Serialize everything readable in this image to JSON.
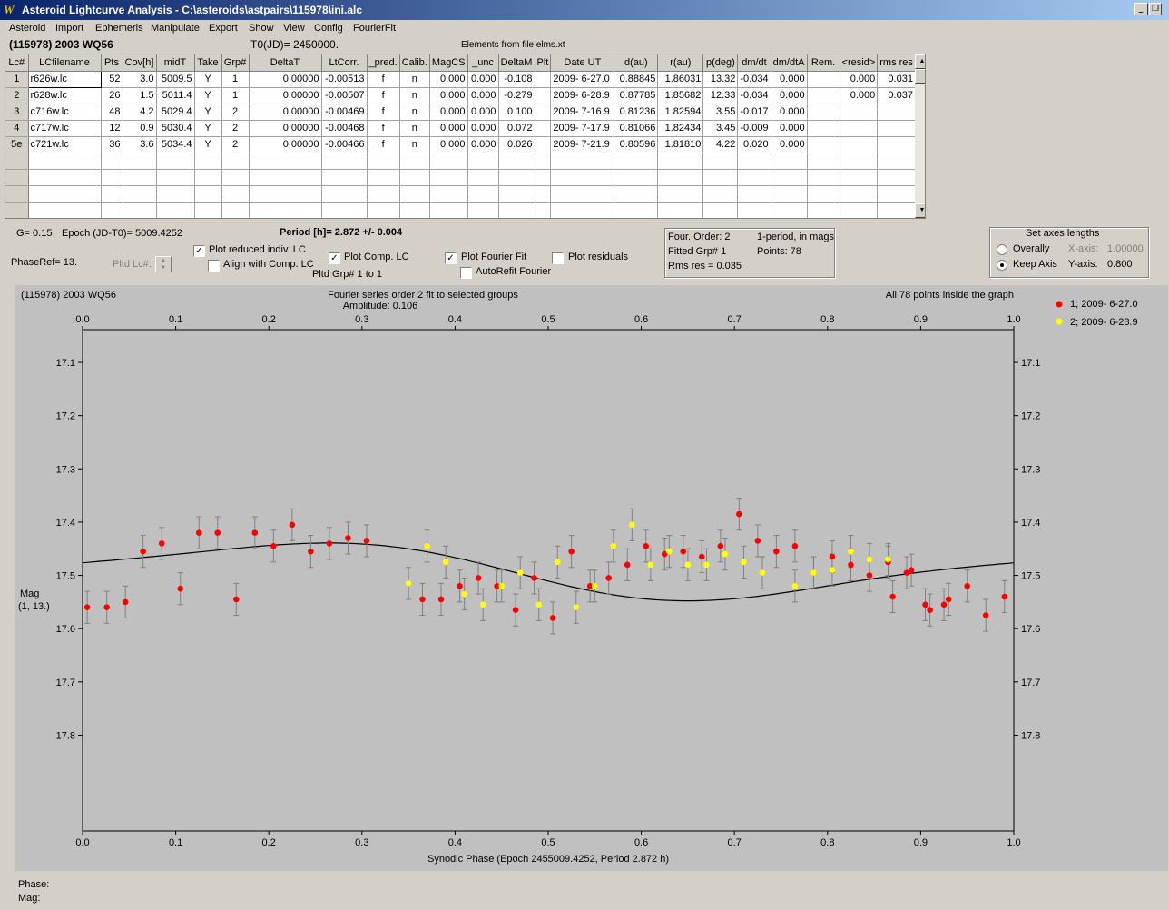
{
  "window": {
    "title": "Asteroid Lightcurve Analysis - C:\\asteroids\\astpairs\\115978\\ini.alc",
    "min": "_",
    "restore": "❐",
    "close": "×"
  },
  "menu": [
    "Asteroid",
    "Import",
    "Ephemeris",
    "Manipulate",
    "Export",
    "Show",
    "View",
    "Config",
    "FourierFit"
  ],
  "asteroid_name": "(115978) 2003 WQ56",
  "t0": "T0(JD)= 2450000.",
  "elements": "Elements from file elms.xt",
  "grid": {
    "headers": [
      "Lc#",
      "LCfilename",
      "Pts",
      "Cov[h]",
      "midT",
      "Take",
      "Grp#",
      "DeltaT",
      "LtCorr.",
      "_pred.",
      "Calib.",
      "MagCS",
      "_unc",
      "DeltaM",
      "Plt",
      "Date UT",
      "d(au)",
      "r(au)",
      "p(deg)",
      "dm/dt",
      "dm/dtA",
      "Rem.",
      "<resid>",
      "rms res"
    ],
    "rows": [
      [
        "1",
        "r626w.lc",
        "52",
        "3.0",
        "5009.5",
        "Y",
        "1",
        "0.00000",
        "-0.00513",
        "f",
        "n",
        "0.000",
        "0.000",
        "-0.108",
        "",
        "2009- 6-27.0",
        "0.88845",
        "1.86031",
        "13.32",
        "-0.034",
        "0.000",
        "",
        "0.000",
        "0.031"
      ],
      [
        "2",
        "r628w.lc",
        "26",
        "1.5",
        "5011.4",
        "Y",
        "1",
        "0.00000",
        "-0.00507",
        "f",
        "n",
        "0.000",
        "0.000",
        "-0.279",
        "",
        "2009- 6-28.9",
        "0.87785",
        "1.85682",
        "12.33",
        "-0.034",
        "0.000",
        "",
        "0.000",
        "0.037"
      ],
      [
        "3",
        "c716w.lc",
        "48",
        "4.2",
        "5029.4",
        "Y",
        "2",
        "0.00000",
        "-0.00469",
        "f",
        "n",
        "0.000",
        "0.000",
        "0.100",
        "",
        "2009- 7-16.9",
        "0.81236",
        "1.82594",
        "3.55",
        "-0.017",
        "0.000",
        "",
        "",
        ""
      ],
      [
        "4",
        "c717w.lc",
        "12",
        "0.9",
        "5030.4",
        "Y",
        "2",
        "0.00000",
        "-0.00468",
        "f",
        "n",
        "0.000",
        "0.000",
        "0.072",
        "",
        "2009- 7-17.9",
        "0.81066",
        "1.82434",
        "3.45",
        "-0.009",
        "0.000",
        "",
        "",
        ""
      ],
      [
        "5e",
        "c721w.lc",
        "36",
        "3.6",
        "5034.4",
        "Y",
        "2",
        "0.00000",
        "-0.00466",
        "f",
        "n",
        "0.000",
        "0.000",
        "0.026",
        "",
        "2009- 7-21.9",
        "0.80596",
        "1.81810",
        "4.22",
        "0.020",
        "0.000",
        "",
        "",
        ""
      ]
    ],
    "empty_rows": 4
  },
  "controls": {
    "g": "G= 0.15",
    "epoch": "Epoch (JD-T0)= 5009.4252",
    "period": "Period [h]= 2.872 +/- 0.004",
    "phaseref": "PhaseRef= 13.",
    "pltd_lc": "Pltd Lc#:",
    "plot_reduced": "Plot reduced indiv. LC",
    "align_comp": "Align with Comp. LC",
    "plot_comp": "Plot Comp. LC",
    "pltd_grp": "Pltd Grp#  1   to   1",
    "plot_fourier": "Plot Fourier Fit",
    "autorefit": "AutoRefit Fourier",
    "plot_residuals": "Plot residuals",
    "four_order": "Four. Order:  2",
    "one_period": "1-period, in mags",
    "fitted_grp": "Fitted Grp# 1",
    "points": "Points: 78",
    "rms_res": "Rms res      = 0.035",
    "axes_title": "Set axes lengths",
    "overally": "Overally",
    "keep_axis": "Keep Axis",
    "xaxis_label": "X-axis:",
    "xaxis_value": "1.00000",
    "yaxis_label": "Y-axis:",
    "yaxis_value": "0.800"
  },
  "plot": {
    "name": "(115978) 2003 WQ56",
    "fit_text": "Fourier series order 2 fit to selected groups",
    "amplitude": "Amplitude: 0.106",
    "inside": "All 78 points inside the graph",
    "legend": [
      "1; 2009- 6-27.0",
      "2; 2009- 6-28.9"
    ],
    "ylabel1": "Mag",
    "ylabel2": "(1, 13.)",
    "xlabel": "Synodic Phase (Epoch 2455009.4252, Period 2.872 h)",
    "phase_label": "Phase:",
    "mag_label": "Mag:"
  },
  "colors": {
    "series1": "#ff0000",
    "series2": "#ffff00",
    "curve": "#000000",
    "plot_bg": "#c0c0c0",
    "errbar": "#808080"
  },
  "chart_data": {
    "type": "scatter",
    "title": "Fourier series order 2 fit to selected groups",
    "xlabel": "Synodic Phase (Epoch 2455009.4252, Period 2.872 h)",
    "ylabel": "Mag",
    "xlim": [
      0.0,
      1.0
    ],
    "ylim": [
      17.1,
      17.9
    ],
    "y_inverted": true,
    "xticks": [
      "0.0",
      "0.1",
      "0.2",
      "0.3",
      "0.4",
      "0.5",
      "0.6",
      "0.7",
      "0.8",
      "0.9",
      "1.0"
    ],
    "yticks": [
      "17.1",
      "17.2",
      "17.3",
      "17.4",
      "17.5",
      "17.6",
      "17.7",
      "17.8"
    ],
    "err": 0.03,
    "series": [
      {
        "name": "1; 2009- 6-27.0",
        "color": "#ff0000",
        "points": [
          [
            0.005,
            17.56
          ],
          [
            0.026,
            17.56
          ],
          [
            0.046,
            17.55
          ],
          [
            0.065,
            17.455
          ],
          [
            0.085,
            17.44
          ],
          [
            0.105,
            17.525
          ],
          [
            0.125,
            17.42
          ],
          [
            0.145,
            17.42
          ],
          [
            0.165,
            17.545
          ],
          [
            0.185,
            17.42
          ],
          [
            0.205,
            17.445
          ],
          [
            0.225,
            17.405
          ],
          [
            0.245,
            17.455
          ],
          [
            0.265,
            17.44
          ],
          [
            0.285,
            17.43
          ],
          [
            0.305,
            17.435
          ],
          [
            0.365,
            17.545
          ],
          [
            0.385,
            17.545
          ],
          [
            0.405,
            17.52
          ],
          [
            0.425,
            17.505
          ],
          [
            0.445,
            17.52
          ],
          [
            0.465,
            17.565
          ],
          [
            0.485,
            17.505
          ],
          [
            0.505,
            17.58
          ],
          [
            0.525,
            17.455
          ],
          [
            0.545,
            17.52
          ],
          [
            0.565,
            17.505
          ],
          [
            0.585,
            17.48
          ],
          [
            0.605,
            17.445
          ],
          [
            0.625,
            17.46
          ],
          [
            0.645,
            17.455
          ],
          [
            0.665,
            17.465
          ],
          [
            0.685,
            17.445
          ],
          [
            0.705,
            17.385
          ],
          [
            0.725,
            17.435
          ],
          [
            0.745,
            17.455
          ],
          [
            0.765,
            17.445
          ],
          [
            0.785,
            17.495
          ],
          [
            0.805,
            17.465
          ],
          [
            0.825,
            17.48
          ],
          [
            0.845,
            17.5
          ],
          [
            0.865,
            17.475
          ],
          [
            0.87,
            17.54
          ],
          [
            0.885,
            17.495
          ],
          [
            0.89,
            17.49
          ],
          [
            0.905,
            17.555
          ],
          [
            0.91,
            17.565
          ],
          [
            0.925,
            17.555
          ],
          [
            0.93,
            17.545
          ],
          [
            0.95,
            17.52
          ],
          [
            0.97,
            17.575
          ],
          [
            0.99,
            17.54
          ]
        ]
      },
      {
        "name": "2; 2009- 6-28.9",
        "color": "#ffff00",
        "points": [
          [
            0.35,
            17.515
          ],
          [
            0.37,
            17.445
          ],
          [
            0.39,
            17.475
          ],
          [
            0.41,
            17.535
          ],
          [
            0.43,
            17.555
          ],
          [
            0.45,
            17.52
          ],
          [
            0.47,
            17.495
          ],
          [
            0.49,
            17.555
          ],
          [
            0.51,
            17.475
          ],
          [
            0.53,
            17.56
          ],
          [
            0.55,
            17.52
          ],
          [
            0.57,
            17.445
          ],
          [
            0.59,
            17.405
          ],
          [
            0.61,
            17.48
          ],
          [
            0.63,
            17.455
          ],
          [
            0.65,
            17.48
          ],
          [
            0.67,
            17.48
          ],
          [
            0.69,
            17.46
          ],
          [
            0.71,
            17.475
          ],
          [
            0.73,
            17.495
          ],
          [
            0.765,
            17.52
          ],
          [
            0.785,
            17.495
          ],
          [
            0.805,
            17.49
          ],
          [
            0.825,
            17.455
          ],
          [
            0.845,
            17.47
          ],
          [
            0.865,
            17.47
          ]
        ]
      }
    ],
    "fourier": {
      "mean": 17.49,
      "a1": -0.05,
      "b1": 0.0,
      "a2": 0.0,
      "b2": 0.0
    }
  }
}
